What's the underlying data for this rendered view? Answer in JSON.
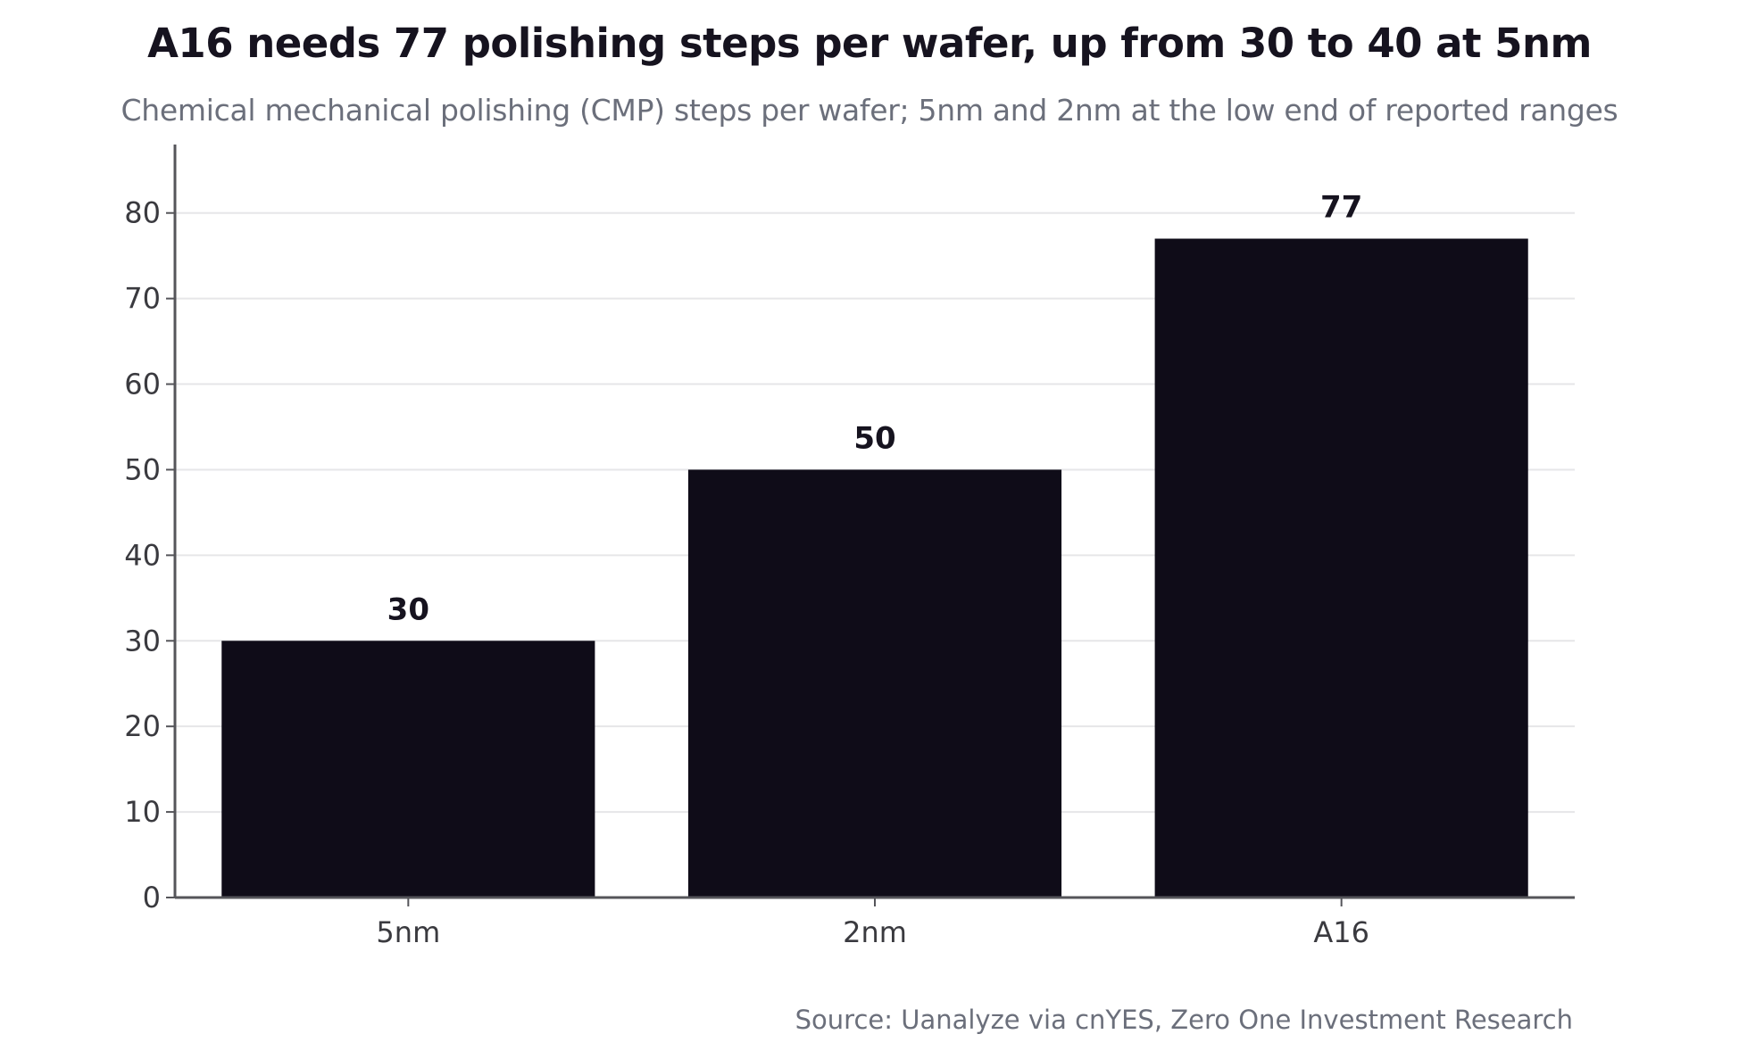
{
  "header": {
    "title": "A16 needs 77 polishing steps per wafer, up from 30 to 40 at 5nm",
    "subtitle": "Chemical mechanical polishing (CMP) steps per wafer; 5nm and 2nm at the low end of reported ranges"
  },
  "footer": {
    "source": "Source: Uanalyze via cnYES, Zero One Investment Research"
  },
  "colors": {
    "bar": "#0f0c18",
    "grid": "#e6e6e8",
    "axis": "#55555a"
  },
  "chart_data": {
    "type": "bar",
    "categories": [
      "5nm",
      "2nm",
      "A16"
    ],
    "values": [
      30,
      50,
      77
    ],
    "data_labels": [
      "30",
      "50",
      "77"
    ],
    "ylim": [
      0,
      88
    ],
    "yticks": [
      0,
      10,
      20,
      30,
      40,
      50,
      60,
      70,
      80
    ],
    "xlabel": "",
    "ylabel": "",
    "grid": true,
    "legend": "none"
  }
}
